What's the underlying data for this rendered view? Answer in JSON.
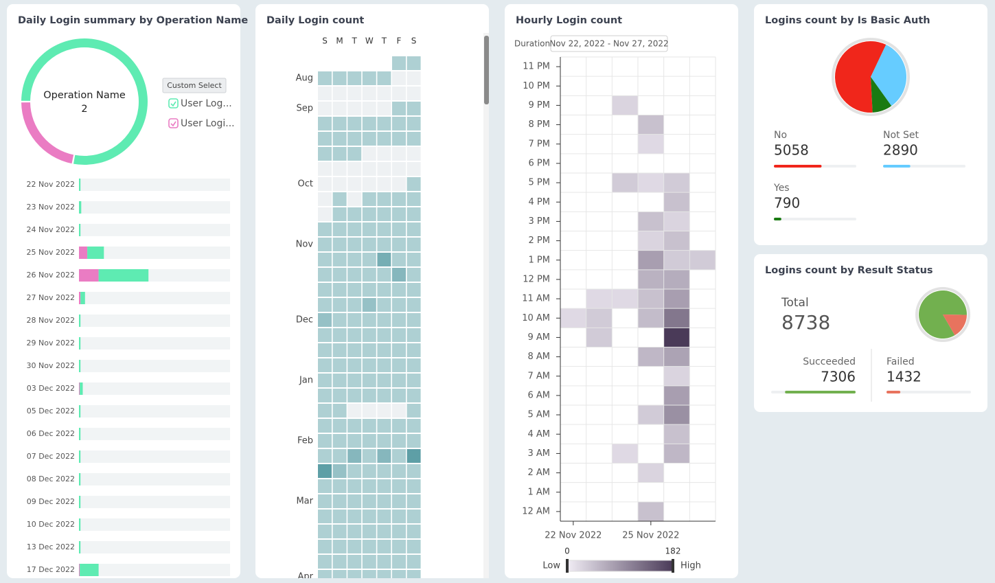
{
  "chart_data": [
    {
      "type": "donut",
      "title": "Daily Login summary by Operation Name",
      "center_label": "Operation Name",
      "center_value": 2,
      "button": "Custom Select",
      "series": [
        {
          "name": "User Log...",
          "color": "#5eebb2",
          "value": 78
        },
        {
          "name": "User Logi...",
          "color": "#ea7cc3",
          "value": 22
        }
      ]
    },
    {
      "type": "stacked-bar",
      "categories": [
        "22 Nov 2022",
        "23 Nov 2022",
        "24 Nov 2022",
        "25 Nov 2022",
        "26 Nov 2022",
        "27 Nov 2022",
        "28 Nov 2022",
        "29 Nov 2022",
        "30 Nov 2022",
        "03 Dec 2022",
        "05 Dec 2022",
        "06 Dec 2022",
        "07 Dec 2022",
        "08 Dec 2022",
        "09 Dec 2022",
        "10 Dec 2022",
        "13 Dec 2022",
        "17 Dec 2022"
      ],
      "series": [
        {
          "color": "#ea7cc3",
          "values": [
            0,
            0,
            0,
            5.5,
            13,
            1,
            0,
            0,
            0,
            0.5,
            0,
            0,
            0,
            0,
            0,
            0,
            0,
            0.5
          ]
        },
        {
          "color": "#5eebb2",
          "values": [
            1,
            1.5,
            1,
            11,
            33,
            3,
            1,
            1,
            1,
            2,
            1,
            1,
            1,
            1,
            1,
            1,
            1,
            12.5
          ]
        }
      ],
      "xlim": [
        0,
        100
      ]
    },
    {
      "type": "calendar-heatmap",
      "title": "Daily Login count",
      "days": [
        "S",
        "M",
        "T",
        "W",
        "T",
        "F",
        "S"
      ],
      "months": [
        {
          "label": "Aug",
          "week": 1
        },
        {
          "label": "Sep",
          "week": 3
        },
        {
          "label": "Oct",
          "week": 8
        },
        {
          "label": "Nov",
          "week": 12
        },
        {
          "label": "Dec",
          "week": 17
        },
        {
          "label": "Jan",
          "week": 21
        },
        {
          "label": "Feb",
          "week": 25
        },
        {
          "label": "Mar",
          "week": 29
        },
        {
          "label": "Apr",
          "week": 34
        }
      ],
      "values": [
        [
          null,
          null,
          null,
          null,
          null,
          5,
          5
        ],
        [
          5,
          5,
          5,
          5,
          5,
          0,
          0
        ],
        [
          0,
          0,
          0,
          0,
          0,
          0,
          0
        ],
        [
          0,
          0,
          0,
          0,
          0,
          5,
          5
        ],
        [
          5,
          5,
          5,
          5,
          5,
          5,
          5
        ],
        [
          5,
          5,
          5,
          5,
          5,
          5,
          5
        ],
        [
          5,
          5,
          5,
          0,
          0,
          0,
          0
        ],
        [
          0,
          0,
          0,
          0,
          0,
          0,
          0
        ],
        [
          0,
          0,
          0,
          0,
          0,
          0,
          5
        ],
        [
          0,
          5,
          0,
          5,
          5,
          5,
          5
        ],
        [
          0,
          5,
          5,
          5,
          5,
          5,
          5
        ],
        [
          5,
          5,
          5,
          5,
          5,
          5,
          5
        ],
        [
          5,
          5,
          5,
          5,
          5,
          5,
          5
        ],
        [
          5,
          5,
          5,
          5,
          12,
          5,
          5
        ],
        [
          5,
          5,
          5,
          5,
          5,
          10,
          5
        ],
        [
          5,
          5,
          5,
          5,
          5,
          5,
          5
        ],
        [
          5,
          5,
          5,
          8,
          5,
          5,
          5
        ],
        [
          8,
          5,
          5,
          5,
          5,
          5,
          5
        ],
        [
          5,
          5,
          5,
          5,
          5,
          5,
          5
        ],
        [
          5,
          5,
          5,
          5,
          5,
          5,
          5
        ],
        [
          5,
          5,
          5,
          5,
          5,
          5,
          5
        ],
        [
          5,
          5,
          5,
          5,
          5,
          5,
          5
        ],
        [
          5,
          5,
          5,
          5,
          5,
          5,
          5
        ],
        [
          5,
          5,
          0,
          0,
          0,
          0,
          5
        ],
        [
          5,
          5,
          5,
          5,
          5,
          5,
          5
        ],
        [
          5,
          5,
          5,
          5,
          5,
          5,
          5
        ],
        [
          5,
          5,
          10,
          5,
          10,
          5,
          15
        ],
        [
          15,
          8,
          5,
          5,
          5,
          5,
          5
        ],
        [
          5,
          5,
          5,
          5,
          5,
          5,
          5
        ],
        [
          5,
          5,
          5,
          5,
          5,
          5,
          5
        ],
        [
          5,
          5,
          5,
          5,
          5,
          5,
          5
        ],
        [
          5,
          5,
          5,
          5,
          5,
          5,
          5
        ],
        [
          5,
          5,
          5,
          5,
          5,
          5,
          5
        ],
        [
          5,
          5,
          5,
          5,
          5,
          5,
          5
        ],
        [
          5,
          5,
          5,
          5,
          5,
          5,
          5
        ]
      ],
      "zero_color": "#eef1f3",
      "color_low": "#d6e8ea",
      "color_high": "#5e9fa6"
    },
    {
      "type": "heatmap",
      "title": "Hourly Login count",
      "duration_label": "Duration",
      "duration": "Nov 22, 2022 - Nov 27, 2022",
      "x": [
        "22 Nov 2022",
        null,
        null,
        "25 Nov 2022",
        null,
        null
      ],
      "y": [
        "12 AM",
        "1 AM",
        "2 AM",
        "3 AM",
        "4 AM",
        "5 AM",
        "6 AM",
        "7 AM",
        "8 AM",
        "9 AM",
        "10 AM",
        "11 AM",
        "12 PM",
        "1 PM",
        "2 PM",
        "3 PM",
        "4 PM",
        "5 PM",
        "6 PM",
        "7 PM",
        "8 PM",
        "9 PM",
        "10 PM",
        "11 PM"
      ],
      "z": [
        [
          null,
          null,
          null,
          45,
          null,
          null
        ],
        [
          null,
          null,
          null,
          null,
          null,
          null
        ],
        [
          null,
          null,
          null,
          25,
          null,
          null
        ],
        [
          null,
          null,
          20,
          null,
          55,
          null
        ],
        [
          null,
          null,
          null,
          null,
          45,
          null
        ],
        [
          null,
          null,
          null,
          35,
          95,
          null
        ],
        [
          null,
          null,
          null,
          null,
          80,
          null
        ],
        [
          null,
          null,
          null,
          null,
          25,
          null
        ],
        [
          null,
          null,
          null,
          55,
          75,
          null
        ],
        [
          null,
          35,
          null,
          null,
          182,
          null
        ],
        [
          20,
          35,
          null,
          50,
          120,
          null
        ],
        [
          null,
          20,
          20,
          45,
          80,
          null
        ],
        [
          null,
          null,
          null,
          60,
          65,
          null
        ],
        [
          null,
          null,
          null,
          80,
          35,
          35
        ],
        [
          null,
          null,
          null,
          25,
          45,
          null
        ],
        [
          null,
          null,
          null,
          45,
          25,
          null
        ],
        [
          null,
          null,
          null,
          null,
          45,
          null
        ],
        [
          null,
          null,
          35,
          20,
          35,
          null
        ],
        [
          null,
          null,
          null,
          null,
          null,
          null
        ],
        [
          null,
          null,
          null,
          20,
          null,
          null
        ],
        [
          null,
          null,
          null,
          45,
          null,
          null
        ],
        [
          null,
          null,
          25,
          null,
          null,
          null
        ],
        [
          null,
          null,
          null,
          null,
          null,
          null
        ],
        [
          null,
          null,
          null,
          null,
          null,
          null
        ]
      ],
      "zlim": [
        0,
        182
      ],
      "zticks": [
        0,
        182
      ],
      "low_label": "Low",
      "high_label": "High",
      "color_low": "#f1edf5",
      "color_high": "#4a3a58"
    },
    {
      "type": "pie-stats",
      "title": "Logins count by Is Basic Auth",
      "categories": [
        "No",
        "Not Set",
        "Yes"
      ],
      "values": [
        5058,
        2890,
        790
      ],
      "colors": [
        "#f0261b",
        "#66ccff",
        "#1a7a12"
      ]
    },
    {
      "type": "pie-total",
      "title": "Logins count by Result Status",
      "total_label": "Total",
      "total": 8738,
      "categories": [
        "Succeeded",
        "Failed"
      ],
      "values": [
        7306,
        1432
      ],
      "colors": [
        "#72b04f",
        "#e8735e"
      ]
    }
  ]
}
